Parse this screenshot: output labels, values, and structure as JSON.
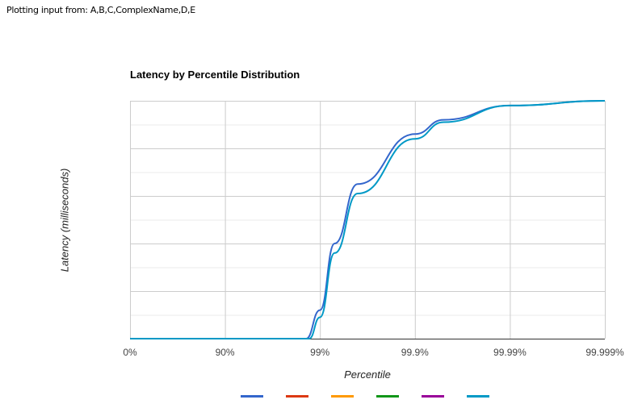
{
  "header": {
    "text": "Plotting input from: A,B,C,ComplexName,D,E"
  },
  "chart_data": {
    "type": "line",
    "title": "Latency by Percentile Distribution",
    "xlabel": "Percentile",
    "ylabel": "Latency (milliseconds)",
    "x_scale": "log-percentile (1/(1-p))",
    "x_ticks": [
      "0%",
      "90%",
      "99%",
      "99.9%",
      "99.99%",
      "99.999%"
    ],
    "y_ticks": [],
    "grid": true,
    "legend_position": "bottom",
    "legend_entries_labels_visible": false,
    "series": [
      {
        "name": "A",
        "color": "#3366cc",
        "x_percentile": [
          0,
          90,
          98.6,
          99,
          99.3,
          99.6,
          99.9,
          99.95,
          99.99,
          99.999
        ],
        "y_fraction_of_max": [
          0,
          0,
          0,
          0.12,
          0.4,
          0.65,
          0.86,
          0.92,
          0.98,
          1.0
        ]
      },
      {
        "name": "B",
        "color": "#dc3912",
        "x_percentile": [],
        "y_fraction_of_max": []
      },
      {
        "name": "C",
        "color": "#ff9900",
        "x_percentile": [],
        "y_fraction_of_max": []
      },
      {
        "name": "ComplexName",
        "color": "#109618",
        "x_percentile": [],
        "y_fraction_of_max": []
      },
      {
        "name": "D",
        "color": "#990099",
        "x_percentile": [],
        "y_fraction_of_max": []
      },
      {
        "name": "E",
        "color": "#0099c6",
        "x_percentile": [
          0,
          90,
          98.7,
          99,
          99.3,
          99.6,
          99.9,
          99.95,
          99.99,
          99.999
        ],
        "y_fraction_of_max": [
          0,
          0,
          0,
          0.09,
          0.36,
          0.61,
          0.84,
          0.91,
          0.98,
          1.0
        ]
      }
    ]
  }
}
